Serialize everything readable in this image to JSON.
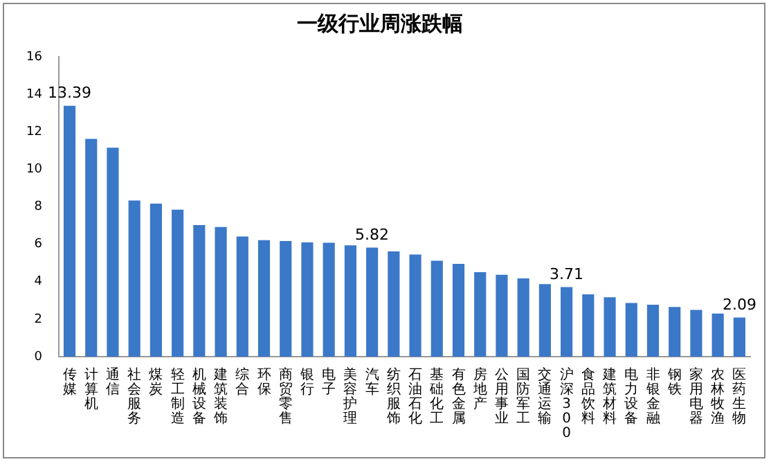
{
  "chart_data": {
    "type": "bar",
    "title": "一级行业周涨跌幅",
    "categories": [
      "传媒",
      "计算机",
      "通信",
      "社会服务",
      "煤炭",
      "轻工制造",
      "机械设备",
      "建筑装饰",
      "综合",
      "环保",
      "商贸零售",
      "银行",
      "电子",
      "美容护理",
      "汽车",
      "纺织服饰",
      "石油石化",
      "基础化工",
      "有色金属",
      "房地产",
      "公用事业",
      "国防军工",
      "交通运输",
      "沪深300",
      "食品饮料",
      "建筑材料",
      "电力设备",
      "非银金融",
      "钢铁",
      "家用电器",
      "农林牧渔",
      "医药生物"
    ],
    "values": [
      13.39,
      11.62,
      11.15,
      8.33,
      8.17,
      7.84,
      7.02,
      6.92,
      6.41,
      6.22,
      6.17,
      6.1,
      6.08,
      5.94,
      5.82,
      5.62,
      5.45,
      5.12,
      4.95,
      4.51,
      4.37,
      4.18,
      3.87,
      3.71,
      3.33,
      3.17,
      2.86,
      2.77,
      2.65,
      2.49,
      2.3,
      2.09
    ],
    "value_labels": [
      "13.39",
      null,
      null,
      null,
      null,
      null,
      null,
      null,
      null,
      null,
      null,
      null,
      null,
      null,
      "5.82",
      null,
      null,
      null,
      null,
      null,
      null,
      null,
      null,
      "3.71",
      null,
      null,
      null,
      null,
      null,
      null,
      null,
      "2.09"
    ],
    "color": "#3b78c8",
    "ylim": [
      0,
      16
    ],
    "yticks": [
      0,
      2,
      4,
      6,
      8,
      10,
      12,
      14,
      16
    ],
    "grid": false
  }
}
